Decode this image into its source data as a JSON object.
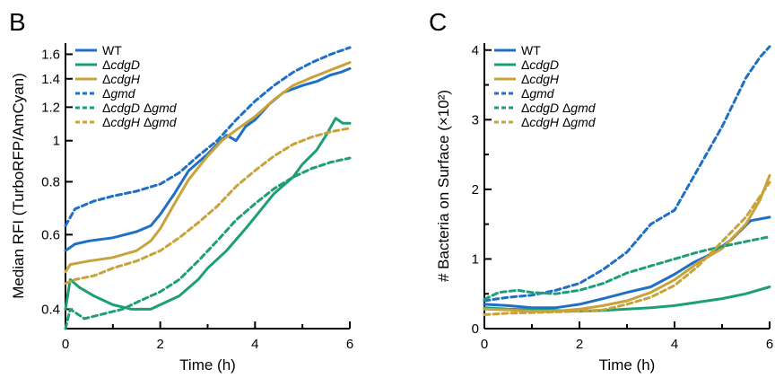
{
  "chart_data": [
    {
      "type": "line",
      "panel_label": "B",
      "xlabel": "Time (h)",
      "ylabel": "Median RFI (TurboRFP/AmCyan)",
      "yscale": "log",
      "xlim": [
        0,
        6
      ],
      "ylim": [
        0.36,
        1.7
      ],
      "xticks": [
        0,
        2,
        4,
        6
      ],
      "xtick_labels": [
        "0",
        "2",
        "4",
        "6"
      ],
      "yticks": [
        0.4,
        0.6,
        0.8,
        1,
        1.2,
        1.4,
        1.6
      ],
      "ytick_labels": [
        "0.4",
        "0.6",
        "0.8",
        "1",
        "1.2",
        "1.4",
        "1.6"
      ],
      "legend_position": "top-left",
      "series": [
        {
          "name": "WT",
          "color": "#1f6fc4",
          "dash": "solid",
          "points": [
            [
              0,
              0.55
            ],
            [
              0.2,
              0.57
            ],
            [
              0.5,
              0.58
            ],
            [
              1,
              0.59
            ],
            [
              1.5,
              0.61
            ],
            [
              1.8,
              0.63
            ],
            [
              2,
              0.67
            ],
            [
              2.3,
              0.75
            ],
            [
              2.6,
              0.85
            ],
            [
              3,
              0.93
            ],
            [
              3.2,
              0.98
            ],
            [
              3.4,
              1.03
            ],
            [
              3.6,
              1.0
            ],
            [
              3.8,
              1.08
            ],
            [
              4,
              1.12
            ],
            [
              4.3,
              1.22
            ],
            [
              4.6,
              1.3
            ],
            [
              5,
              1.35
            ],
            [
              5.3,
              1.38
            ],
            [
              5.6,
              1.43
            ],
            [
              5.8,
              1.45
            ],
            [
              6,
              1.48
            ]
          ]
        },
        {
          "name": "ΔcdgD",
          "color": "#1e9e78",
          "dash": "solid",
          "points": [
            [
              0,
              0.4
            ],
            [
              0.1,
              0.47
            ],
            [
              0.3,
              0.45
            ],
            [
              0.6,
              0.43
            ],
            [
              1,
              0.41
            ],
            [
              1.4,
              0.4
            ],
            [
              1.8,
              0.4
            ],
            [
              2,
              0.41
            ],
            [
              2.4,
              0.43
            ],
            [
              2.8,
              0.47
            ],
            [
              3,
              0.5
            ],
            [
              3.4,
              0.55
            ],
            [
              3.8,
              0.62
            ],
            [
              4,
              0.66
            ],
            [
              4.4,
              0.75
            ],
            [
              4.8,
              0.82
            ],
            [
              5,
              0.88
            ],
            [
              5.3,
              0.95
            ],
            [
              5.5,
              1.03
            ],
            [
              5.7,
              1.13
            ],
            [
              5.85,
              1.1
            ],
            [
              6,
              1.1
            ]
          ]
        },
        {
          "name": "ΔcdgH",
          "color": "#c8a23a",
          "dash": "solid",
          "points": [
            [
              0,
              0.49
            ],
            [
              0.1,
              0.51
            ],
            [
              0.5,
              0.52
            ],
            [
              1,
              0.53
            ],
            [
              1.5,
              0.55
            ],
            [
              1.8,
              0.58
            ],
            [
              2,
              0.62
            ],
            [
              2.3,
              0.71
            ],
            [
              2.6,
              0.81
            ],
            [
              3,
              0.92
            ],
            [
              3.3,
              1.0
            ],
            [
              3.6,
              1.06
            ],
            [
              4,
              1.14
            ],
            [
              4.4,
              1.25
            ],
            [
              4.8,
              1.35
            ],
            [
              5.2,
              1.41
            ],
            [
              5.6,
              1.47
            ],
            [
              6,
              1.53
            ]
          ]
        },
        {
          "name": "Δgmd",
          "color": "#1f6fc4",
          "dash": "dashed",
          "points": [
            [
              0,
              0.63
            ],
            [
              0.2,
              0.69
            ],
            [
              0.6,
              0.72
            ],
            [
              1,
              0.74
            ],
            [
              1.5,
              0.76
            ],
            [
              2,
              0.79
            ],
            [
              2.4,
              0.84
            ],
            [
              2.8,
              0.92
            ],
            [
              3.2,
              1.0
            ],
            [
              3.6,
              1.12
            ],
            [
              4,
              1.24
            ],
            [
              4.4,
              1.35
            ],
            [
              4.8,
              1.45
            ],
            [
              5.2,
              1.53
            ],
            [
              5.6,
              1.6
            ],
            [
              6,
              1.66
            ]
          ]
        },
        {
          "name": "ΔcdgD Δgmd",
          "color": "#1e9e78",
          "dash": "dashed",
          "points": [
            [
              0,
              0.36
            ],
            [
              0.1,
              0.4
            ],
            [
              0.4,
              0.38
            ],
            [
              0.8,
              0.39
            ],
            [
              1.2,
              0.4
            ],
            [
              1.6,
              0.42
            ],
            [
              2,
              0.44
            ],
            [
              2.4,
              0.47
            ],
            [
              2.8,
              0.52
            ],
            [
              3.2,
              0.58
            ],
            [
              3.6,
              0.65
            ],
            [
              4,
              0.71
            ],
            [
              4.4,
              0.77
            ],
            [
              4.8,
              0.82
            ],
            [
              5.2,
              0.86
            ],
            [
              5.6,
              0.89
            ],
            [
              6,
              0.91
            ]
          ]
        },
        {
          "name": "ΔcdgH Δgmd",
          "color": "#c8a23a",
          "dash": "dashed",
          "points": [
            [
              0,
              0.46
            ],
            [
              0.2,
              0.47
            ],
            [
              0.6,
              0.48
            ],
            [
              1,
              0.5
            ],
            [
              1.5,
              0.52
            ],
            [
              2,
              0.55
            ],
            [
              2.4,
              0.59
            ],
            [
              2.8,
              0.64
            ],
            [
              3.2,
              0.7
            ],
            [
              3.6,
              0.78
            ],
            [
              4,
              0.85
            ],
            [
              4.4,
              0.92
            ],
            [
              4.8,
              0.98
            ],
            [
              5.2,
              1.02
            ],
            [
              5.6,
              1.05
            ],
            [
              6,
              1.07
            ]
          ]
        }
      ]
    },
    {
      "type": "line",
      "panel_label": "C",
      "xlabel": "Time (h)",
      "ylabel": "# Bacteria on Surface (×10²)",
      "yscale": "linear",
      "xlim": [
        0,
        6
      ],
      "ylim": [
        0,
        4.1
      ],
      "xticks": [
        0,
        2,
        4,
        6
      ],
      "xtick_labels": [
        "0",
        "2",
        "4",
        "6"
      ],
      "yticks": [
        0,
        1,
        2,
        3,
        4
      ],
      "ytick_labels": [
        "0",
        "1",
        "2",
        "3",
        "4"
      ],
      "legend_position": "top-left",
      "series": [
        {
          "name": "WT",
          "color": "#1f6fc4",
          "dash": "solid",
          "points": [
            [
              0,
              0.35
            ],
            [
              0.5,
              0.33
            ],
            [
              1,
              0.3
            ],
            [
              1.5,
              0.3
            ],
            [
              2,
              0.35
            ],
            [
              2.5,
              0.43
            ],
            [
              3,
              0.52
            ],
            [
              3.5,
              0.6
            ],
            [
              4,
              0.78
            ],
            [
              4.4,
              0.95
            ],
            [
              4.8,
              1.08
            ],
            [
              5.2,
              1.28
            ],
            [
              5.6,
              1.55
            ],
            [
              6,
              1.6
            ]
          ]
        },
        {
          "name": "ΔcdgD",
          "color": "#1e9e78",
          "dash": "solid",
          "points": [
            [
              0,
              0.3
            ],
            [
              0.5,
              0.28
            ],
            [
              1,
              0.27
            ],
            [
              1.5,
              0.26
            ],
            [
              2,
              0.25
            ],
            [
              2.5,
              0.26
            ],
            [
              3,
              0.28
            ],
            [
              3.5,
              0.3
            ],
            [
              4,
              0.33
            ],
            [
              4.5,
              0.38
            ],
            [
              5,
              0.43
            ],
            [
              5.5,
              0.5
            ],
            [
              6,
              0.6
            ]
          ]
        },
        {
          "name": "ΔcdgH",
          "color": "#c8a23a",
          "dash": "solid",
          "points": [
            [
              0,
              0.28
            ],
            [
              0.5,
              0.27
            ],
            [
              1,
              0.25
            ],
            [
              1.5,
              0.25
            ],
            [
              2,
              0.28
            ],
            [
              2.5,
              0.33
            ],
            [
              3,
              0.4
            ],
            [
              3.5,
              0.52
            ],
            [
              4,
              0.7
            ],
            [
              4.5,
              0.95
            ],
            [
              5,
              1.15
            ],
            [
              5.5,
              1.5
            ],
            [
              5.8,
              1.85
            ],
            [
              6,
              2.2
            ]
          ]
        },
        {
          "name": "Δgmd",
          "color": "#1f6fc4",
          "dash": "dashed",
          "points": [
            [
              0,
              0.4
            ],
            [
              0.5,
              0.45
            ],
            [
              1,
              0.48
            ],
            [
              1.5,
              0.55
            ],
            [
              2,
              0.65
            ],
            [
              2.5,
              0.85
            ],
            [
              3,
              1.1
            ],
            [
              3.5,
              1.5
            ],
            [
              4,
              1.7
            ],
            [
              4.5,
              2.3
            ],
            [
              5,
              2.9
            ],
            [
              5.5,
              3.6
            ],
            [
              5.8,
              3.9
            ],
            [
              6,
              4.05
            ]
          ]
        },
        {
          "name": "ΔcdgD Δgmd",
          "color": "#1e9e78",
          "dash": "dashed",
          "points": [
            [
              0,
              0.42
            ],
            [
              0.3,
              0.52
            ],
            [
              0.7,
              0.55
            ],
            [
              1,
              0.52
            ],
            [
              1.5,
              0.5
            ],
            [
              2,
              0.55
            ],
            [
              2.5,
              0.65
            ],
            [
              3,
              0.8
            ],
            [
              3.5,
              0.9
            ],
            [
              4,
              1.0
            ],
            [
              4.5,
              1.1
            ],
            [
              5,
              1.18
            ],
            [
              5.5,
              1.25
            ],
            [
              6,
              1.32
            ]
          ]
        },
        {
          "name": "ΔcdgH Δgmd",
          "color": "#c8a23a",
          "dash": "dashed",
          "points": [
            [
              0,
              0.2
            ],
            [
              0.5,
              0.22
            ],
            [
              1,
              0.23
            ],
            [
              1.5,
              0.24
            ],
            [
              2,
              0.25
            ],
            [
              2.5,
              0.27
            ],
            [
              3,
              0.35
            ],
            [
              3.5,
              0.45
            ],
            [
              4,
              0.62
            ],
            [
              4.5,
              0.9
            ],
            [
              5,
              1.25
            ],
            [
              5.5,
              1.6
            ],
            [
              6,
              2.1
            ]
          ]
        }
      ]
    }
  ]
}
